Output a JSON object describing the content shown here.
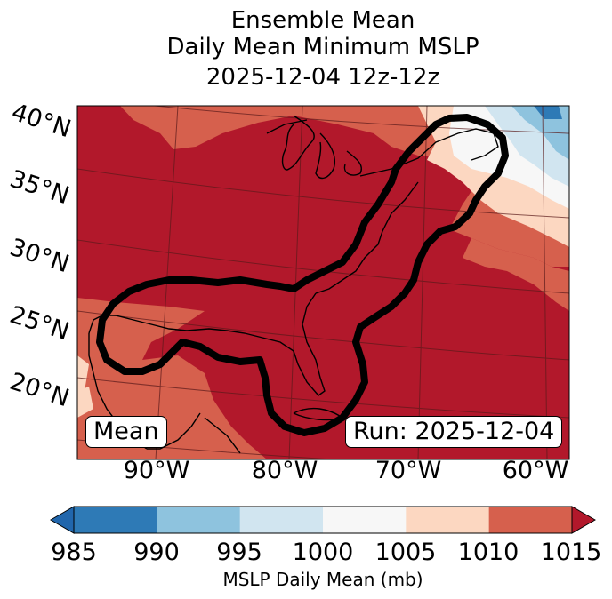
{
  "title": {
    "line1": "Ensemble Mean",
    "line2": "Daily Mean Minimum MSLP",
    "line3": "2025-12-04 12z-12z"
  },
  "map": {
    "lat_labels": [
      "40°N",
      "35°N",
      "30°N",
      "25°N",
      "20°N"
    ],
    "lon_labels": [
      "90°W",
      "80°W",
      "70°W",
      "60°W"
    ],
    "left_box": "Mean",
    "right_box": "Run: 2025-12-04",
    "field_colors": {
      "c985": "#2e7ab6",
      "c990": "#8ec3de",
      "c995": "#d1e5f0",
      "c1000": "#f7f7f7",
      "c1005": "#fcd7c1",
      "c1010": "#d6604d",
      "c1015": "#b2182b"
    }
  },
  "colorbar": {
    "ticks": [
      "985",
      "990",
      "995",
      "1000",
      "1005",
      "1010",
      "1015"
    ],
    "label": "MSLP Daily Mean (mb)",
    "colors": [
      "#2e7ab6",
      "#8ec3de",
      "#d1e5f0",
      "#f7f7f7",
      "#fcd7c1",
      "#d6604d",
      "#b2182b"
    ],
    "under_color": "#2166ac",
    "over_color": "#b2182b"
  }
}
